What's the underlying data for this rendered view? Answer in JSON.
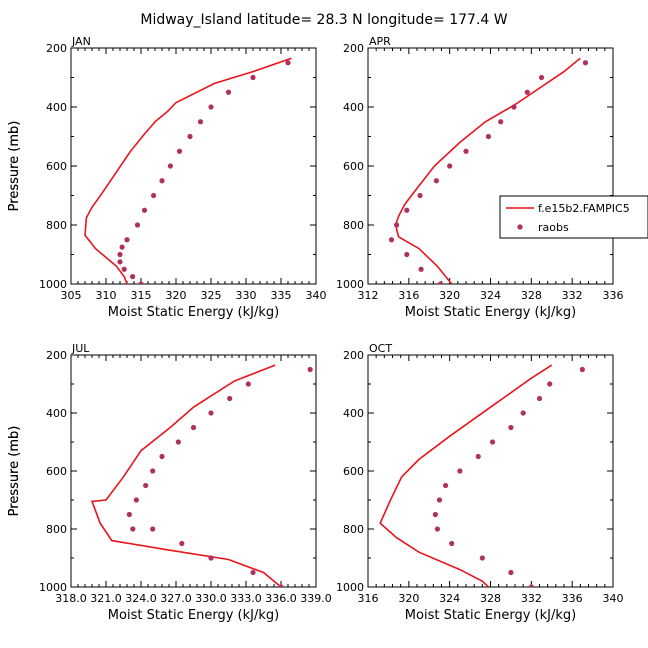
{
  "figure_title": "Midway_Island  latitude= 28.3 N longitude= 177.4 W",
  "colors": {
    "model": "#e8141c",
    "obs": "#b03060",
    "frame": "#000000"
  },
  "legend": {
    "model_label": "f.e15b2.FAMPIC5",
    "obs_label": "raobs"
  },
  "chart_data": [
    {
      "type": "line",
      "panel_label": "JAN",
      "xlabel": "Moist Static Energy (kJ/kg)",
      "ylabel": "Pressure (mb)",
      "xlim": [
        305,
        340
      ],
      "ylim": [
        1000,
        200
      ],
      "x_ticks": [
        305,
        310,
        315,
        320,
        325,
        330,
        335,
        340
      ],
      "x_tick_labels": [
        "305",
        "310",
        "315",
        "320",
        "325",
        "330",
        "335",
        "340"
      ],
      "y_ticks": [
        200,
        400,
        600,
        800,
        1000
      ],
      "y_tick_labels": [
        "200",
        "400",
        "600",
        "800",
        "1000"
      ],
      "grid": false,
      "legend": "none",
      "series": [
        {
          "name": "f.e15b2.FAMPIC5",
          "style": "line",
          "x": [
            336.5,
            331.0,
            325.5,
            320.0,
            318.8,
            317.0,
            315.2,
            313.5,
            311.5,
            309.5,
            308.0,
            307.2,
            307.0,
            308.5,
            311.5,
            312.6,
            313.0
          ],
          "y": [
            235,
            280,
            320,
            385,
            415,
            450,
            500,
            550,
            620,
            690,
            740,
            775,
            835,
            880,
            940,
            975,
            1000
          ]
        },
        {
          "name": "raobs",
          "style": "points",
          "x": [
            336.0,
            331.0,
            327.5,
            325.0,
            323.5,
            322.0,
            320.5,
            319.2,
            318.0,
            316.8,
            315.5,
            314.5,
            313.0,
            312.3,
            312.0,
            312.0,
            312.6,
            313.8,
            315.0
          ],
          "y": [
            250,
            300,
            350,
            400,
            450,
            500,
            550,
            600,
            650,
            700,
            750,
            800,
            850,
            875,
            900,
            925,
            950,
            975,
            1000
          ]
        }
      ]
    },
    {
      "type": "line",
      "panel_label": "APR",
      "xlabel": "Moist Static Energy (kJ/kg)",
      "ylabel": "Pressure (mb)",
      "xlim": [
        312,
        336
      ],
      "ylim": [
        1000,
        200
      ],
      "x_ticks": [
        312,
        316,
        320,
        324,
        328,
        332,
        336
      ],
      "x_tick_labels": [
        "312",
        "316",
        "320",
        "324",
        "328",
        "332",
        "336"
      ],
      "y_ticks": [
        200,
        400,
        600,
        800,
        1000
      ],
      "y_tick_labels": [
        "200",
        "400",
        "600",
        "800",
        "1000"
      ],
      "grid": false,
      "legend": "right",
      "series": [
        {
          "name": "f.e15b2.FAMPIC5",
          "style": "line",
          "x": [
            332.8,
            331.2,
            326.5,
            323.5,
            321.0,
            318.5,
            316.7,
            315.6,
            315.0,
            314.7,
            315.0,
            317.0,
            318.8,
            320.2
          ],
          "y": [
            235,
            280,
            390,
            450,
            520,
            600,
            680,
            730,
            770,
            800,
            840,
            880,
            940,
            1000
          ]
        },
        {
          "name": "raobs",
          "style": "points",
          "x": [
            333.3,
            329.0,
            327.6,
            326.3,
            325.0,
            323.8,
            321.6,
            320.0,
            318.7,
            317.1,
            315.8,
            314.8,
            314.3,
            315.8,
            317.2,
            319.1
          ],
          "y": [
            250,
            300,
            350,
            400,
            450,
            500,
            550,
            600,
            650,
            700,
            750,
            800,
            850,
            900,
            950,
            1000
          ]
        }
      ]
    },
    {
      "type": "line",
      "panel_label": "JUL",
      "xlabel": "Moist Static Energy (kJ/kg)",
      "ylabel": "Pressure (mb)",
      "xlim": [
        318.0,
        339.0
      ],
      "ylim": [
        1000,
        200
      ],
      "x_ticks": [
        318.0,
        321.0,
        324.0,
        327.0,
        330.0,
        333.0,
        336.0,
        339.0
      ],
      "x_tick_labels": [
        "318.0",
        "321.0",
        "324.0",
        "327.0",
        "330.0",
        "333.0",
        "336.0",
        "339.0"
      ],
      "y_ticks": [
        200,
        400,
        600,
        800,
        1000
      ],
      "y_tick_labels": [
        "200",
        "400",
        "600",
        "800",
        "1000"
      ],
      "grid": false,
      "legend": "none",
      "series": [
        {
          "name": "f.e15b2.FAMPIC5",
          "style": "line",
          "x": [
            335.5,
            332.0,
            328.5,
            326.5,
            324.0,
            322.5,
            321.0,
            319.8,
            320.5,
            321.5,
            326.0,
            331.5,
            334.5,
            336.3
          ],
          "y": [
            235,
            290,
            380,
            450,
            530,
            620,
            700,
            705,
            780,
            840,
            870,
            905,
            950,
            1010
          ]
        },
        {
          "name": "raobs",
          "style": "points",
          "x": [
            338.5,
            333.2,
            331.6,
            330.0,
            328.5,
            327.2,
            325.8,
            325.0,
            324.4,
            323.6,
            323.0,
            323.3,
            325.0,
            327.5,
            330.0,
            333.6,
            336.0
          ],
          "y": [
            250,
            300,
            350,
            400,
            450,
            500,
            550,
            600,
            650,
            700,
            750,
            800,
            800,
            850,
            900,
            950,
            1000
          ]
        }
      ]
    },
    {
      "type": "line",
      "panel_label": "OCT",
      "xlabel": "Moist Static Energy (kJ/kg)",
      "ylabel": "Pressure (mb)",
      "xlim": [
        316,
        340
      ],
      "ylim": [
        1000,
        200
      ],
      "x_ticks": [
        316,
        320,
        324,
        328,
        332,
        336,
        340
      ],
      "x_tick_labels": [
        "316",
        "320",
        "324",
        "328",
        "332",
        "336",
        "340"
      ],
      "y_ticks": [
        200,
        400,
        600,
        800,
        1000
      ],
      "y_tick_labels": [
        "200",
        "400",
        "600",
        "800",
        "1000"
      ],
      "grid": false,
      "legend": "none",
      "series": [
        {
          "name": "f.e15b2.FAMPIC5",
          "style": "line",
          "x": [
            334.0,
            332.0,
            328.0,
            324.0,
            321.0,
            319.3,
            318.2,
            317.2,
            318.8,
            321.0,
            325.0,
            327.2,
            327.8
          ],
          "y": [
            235,
            280,
            380,
            480,
            560,
            620,
            700,
            780,
            830,
            880,
            940,
            980,
            1000
          ]
        },
        {
          "name": "raobs",
          "style": "points",
          "x": [
            337.0,
            333.8,
            332.8,
            331.2,
            330.0,
            328.2,
            326.8,
            325.0,
            323.6,
            323.0,
            322.6,
            322.8,
            324.2,
            327.2,
            330.0,
            332.0
          ],
          "y": [
            250,
            300,
            350,
            400,
            450,
            500,
            550,
            600,
            650,
            700,
            750,
            800,
            850,
            900,
            950,
            1000
          ]
        }
      ]
    }
  ]
}
